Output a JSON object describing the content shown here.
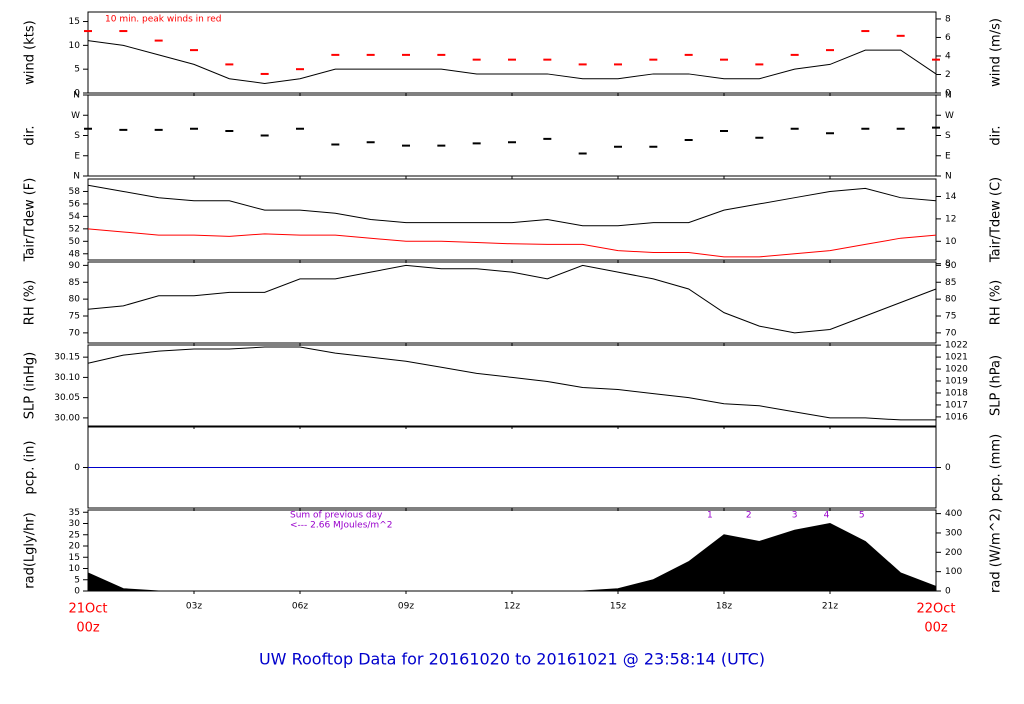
{
  "title": "UW Rooftop Data for 20161020  to  20161021 @ 23:58:14  (UTC)",
  "x_axis": {
    "xlim": [
      0,
      24
    ],
    "x": [
      0,
      1,
      2,
      3,
      4,
      5,
      6,
      7,
      8,
      9,
      10,
      11,
      12,
      13,
      14,
      15,
      16,
      17,
      18,
      19,
      20,
      21,
      22,
      23,
      24
    ],
    "xticks": [
      {
        "value": 3,
        "label": "03z"
      },
      {
        "value": 6,
        "label": "06z"
      },
      {
        "value": 9,
        "label": "09z"
      },
      {
        "value": 12,
        "label": "12z"
      },
      {
        "value": 15,
        "label": "15z"
      },
      {
        "value": 18,
        "label": "18z"
      },
      {
        "value": 21,
        "label": "21z"
      }
    ],
    "start_labels": [
      "21Oct",
      "00z"
    ],
    "end_labels": [
      "22Oct",
      "00z"
    ]
  },
  "chart_data": [
    {
      "type": "line",
      "ylabel": "wind (kts)",
      "y2label": "wind (m/s)",
      "ylim": [
        0,
        17
      ],
      "yticks": [
        0,
        5,
        10,
        15
      ],
      "y2lim": [
        0,
        8.75
      ],
      "y2ticks": [
        0,
        2,
        4,
        6,
        8
      ],
      "annotations": [
        "10 min. peak winds in red"
      ],
      "series": [
        {
          "style": "line",
          "color": "#000000",
          "values": [
            11,
            10,
            8,
            6,
            3,
            2,
            3,
            5,
            5,
            5,
            5,
            4,
            4,
            4,
            3,
            3,
            4,
            4,
            3,
            3,
            5,
            6,
            9,
            9,
            4
          ]
        },
        {
          "style": "dash",
          "color": "#ff0000",
          "values": [
            13,
            13,
            11,
            9,
            6,
            4,
            5,
            8,
            8,
            8,
            8,
            7,
            7,
            7,
            6,
            6,
            7,
            8,
            7,
            6,
            8,
            9,
            13,
            12,
            7
          ]
        }
      ]
    },
    {
      "type": "line",
      "ylabel": "dir.",
      "y2label": "dir.",
      "ylim": [
        0,
        360
      ],
      "yticks": [
        {
          "value": 0,
          "label": "N"
        },
        {
          "value": 90,
          "label": "E"
        },
        {
          "value": 180,
          "label": "S"
        },
        {
          "value": 270,
          "label": "W"
        },
        {
          "value": 360,
          "label": "N"
        }
      ],
      "y2lim": [
        0,
        360
      ],
      "y2ticks": [
        {
          "value": 0,
          "label": "N"
        },
        {
          "value": 90,
          "label": "E"
        },
        {
          "value": 180,
          "label": "S"
        },
        {
          "value": 270,
          "label": "W"
        },
        {
          "value": 360,
          "label": "N"
        }
      ],
      "series": [
        {
          "style": "dash",
          "color": "#000000",
          "values": [
            210,
            205,
            205,
            210,
            200,
            180,
            210,
            140,
            150,
            135,
            135,
            145,
            150,
            165,
            100,
            130,
            130,
            160,
            200,
            170,
            210,
            190,
            210,
            210,
            215
          ]
        }
      ]
    },
    {
      "type": "line",
      "ylabel": "Tair/Tdew (F)",
      "y2label": "Tair/Tdew (C)",
      "ylim": [
        47,
        60
      ],
      "yticks": [
        48,
        50,
        52,
        54,
        56,
        58
      ],
      "y2lim": [
        8.33,
        15.56
      ],
      "y2ticks": [
        8,
        10,
        12,
        14
      ],
      "series": [
        {
          "style": "line",
          "color": "#000000",
          "values": [
            59,
            58,
            57,
            56.5,
            56.5,
            55,
            55,
            54.5,
            53.5,
            53,
            53,
            53,
            53,
            53.5,
            52.5,
            52.5,
            53,
            53,
            55,
            56,
            57,
            58,
            58.5,
            57,
            56.5
          ]
        },
        {
          "style": "line",
          "color": "#ff0000",
          "values": [
            52,
            51.5,
            51,
            51,
            50.8,
            51.2,
            51,
            51,
            50.5,
            50,
            50,
            49.8,
            49.6,
            49.5,
            49.5,
            48.5,
            48.2,
            48.2,
            47.5,
            47.5,
            48,
            48.5,
            49.5,
            50.5,
            51
          ]
        }
      ]
    },
    {
      "type": "line",
      "ylabel": "RH (%)",
      "y2label": "RH (%)",
      "ylim": [
        67,
        91
      ],
      "yticks": [
        70,
        75,
        80,
        85,
        90
      ],
      "y2lim": [
        67,
        91
      ],
      "y2ticks": [
        70,
        75,
        80,
        85,
        90
      ],
      "series": [
        {
          "style": "line",
          "color": "#000000",
          "values": [
            77,
            78,
            81,
            81,
            82,
            82,
            86,
            86,
            88,
            90,
            89,
            89,
            88,
            86,
            90,
            88,
            86,
            83,
            76,
            72,
            70,
            71,
            75,
            79,
            83
          ]
        }
      ]
    },
    {
      "type": "line",
      "ylabel": "SLP (inHg)",
      "y2label": "SLP (hPa)",
      "ylim": [
        29.98,
        30.18
      ],
      "yticks": [
        {
          "value": 30,
          "label": "30.00"
        },
        30.05,
        {
          "value": 30.1,
          "label": "30.10"
        },
        30.15
      ],
      "y2lim": [
        1015.24,
        1022.01
      ],
      "y2ticks": [
        1016,
        1017,
        1018,
        1019,
        1020,
        1021,
        1022
      ],
      "series": [
        {
          "style": "line",
          "color": "#000000",
          "values": [
            30.135,
            30.155,
            30.165,
            30.17,
            30.17,
            30.175,
            30.175,
            30.16,
            30.15,
            30.14,
            30.125,
            30.11,
            30.1,
            30.09,
            30.075,
            30.07,
            30.06,
            30.05,
            30.035,
            30.03,
            30.015,
            30.0,
            30.0,
            29.995,
            29.995
          ]
        }
      ]
    },
    {
      "type": "line",
      "ylabel": "pcp. (in)",
      "y2label": "pcp. (mm)",
      "ylim": [
        -1,
        1
      ],
      "yticks": [
        0
      ],
      "y2lim": [
        -1,
        1
      ],
      "y2ticks": [
        0
      ],
      "series": [
        {
          "style": "line",
          "color": "#0000cc",
          "values": [
            0,
            0,
            0,
            0,
            0,
            0,
            0,
            0,
            0,
            0,
            0,
            0,
            0,
            0,
            0,
            0,
            0,
            0,
            0,
            0,
            0,
            0,
            0,
            0,
            0
          ]
        }
      ]
    },
    {
      "type": "area",
      "ylabel": "rad(Lgly/hr)",
      "y2label": "rad (W/m^2)",
      "ylim": [
        0,
        36
      ],
      "yticks": [
        0,
        5,
        10,
        15,
        20,
        25,
        30,
        35
      ],
      "y2lim": [
        0,
        418.7
      ],
      "y2ticks": [
        0,
        100,
        200,
        300,
        400
      ],
      "annotations": [
        "Sum of previous day",
        "<--- 2.66 MJoules/m^2"
      ],
      "markers": [
        {
          "x": 17.6,
          "label": "1"
        },
        {
          "x": 18.7,
          "label": "2"
        },
        {
          "x": 20,
          "label": "3"
        },
        {
          "x": 20.9,
          "label": "4"
        },
        {
          "x": 21.9,
          "label": "5"
        }
      ],
      "series": [
        {
          "style": "area",
          "color": "#000000",
          "values": [
            8,
            1,
            0,
            0,
            0,
            0,
            0,
            0,
            0,
            0,
            0,
            0,
            0,
            0,
            0,
            1,
            5,
            13,
            25,
            22,
            27,
            30,
            22,
            8,
            2
          ]
        }
      ]
    }
  ]
}
